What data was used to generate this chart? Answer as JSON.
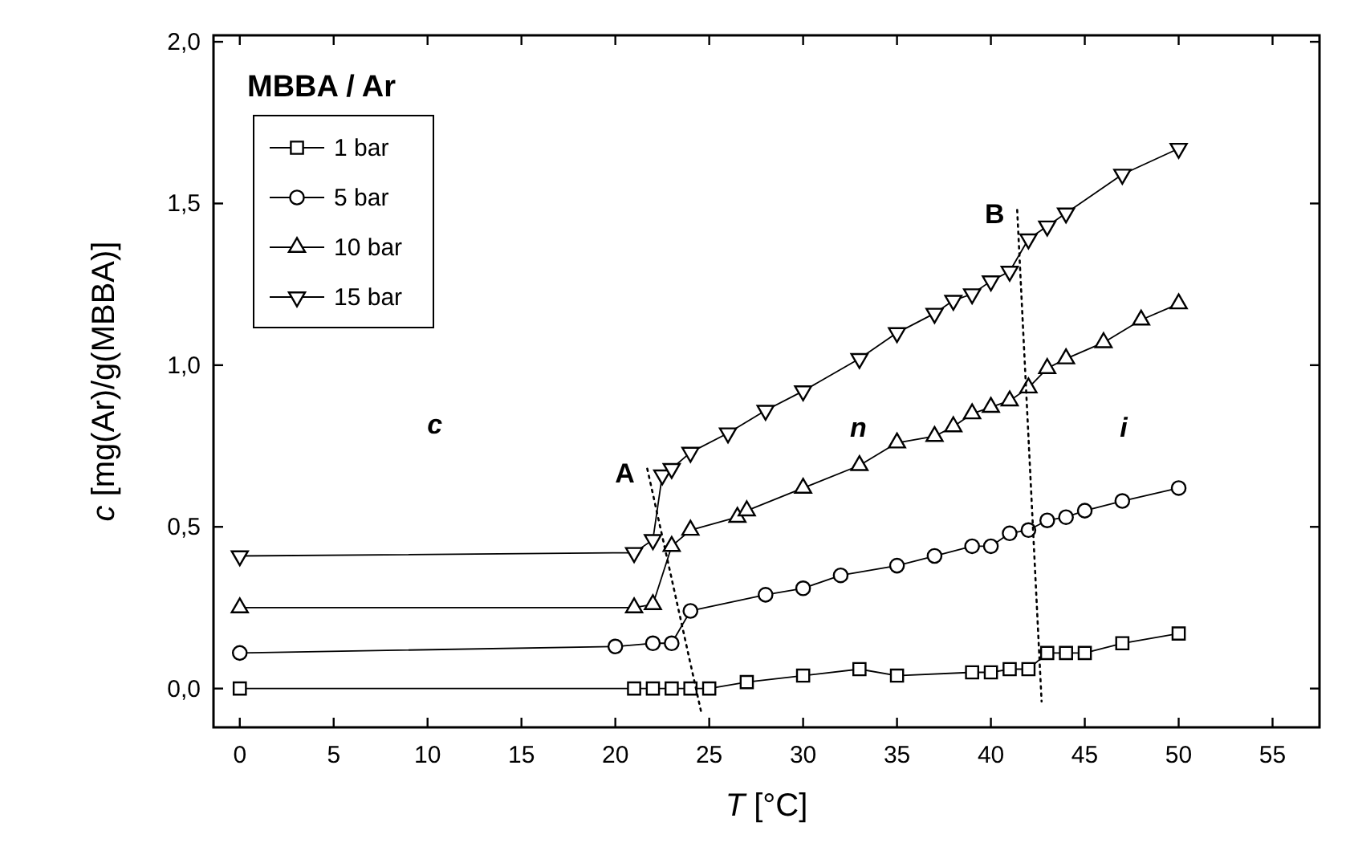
{
  "chart_data": {
    "type": "line",
    "xlabel": "T [°C]",
    "ylabel": "c [mg(Ar)/g(MBBA)]",
    "legend_title": "MBBA / Ar",
    "legend": "top left",
    "grid": false,
    "xlim": [
      -1.4,
      57.5
    ],
    "ylim": [
      -0.12,
      2.02
    ],
    "xticks": [
      0,
      5,
      10,
      15,
      20,
      25,
      30,
      35,
      40,
      45,
      50,
      55
    ],
    "yticks": [
      {
        "value": 0,
        "label": "0,0"
      },
      {
        "value": 0.5,
        "label": "0,5"
      },
      {
        "value": 1,
        "label": "1,0"
      },
      {
        "value": 1.5,
        "label": "1,5"
      },
      {
        "value": 2,
        "label": "2,0"
      }
    ],
    "series": [
      {
        "name": "1 bar",
        "color": "#000000",
        "marker": "square",
        "x": [
          0,
          21,
          22,
          23,
          24,
          25,
          27,
          30,
          33,
          35,
          39,
          40,
          41,
          42,
          43,
          44,
          45,
          47,
          50
        ],
        "values": [
          0,
          0,
          0,
          0,
          0,
          0,
          0.02,
          0.04,
          0.06,
          0.04,
          0.05,
          0.05,
          0.06,
          0.06,
          0.11,
          0.11,
          0.11,
          0.14,
          0.17
        ]
      },
      {
        "name": "5 bar",
        "color": "#000000",
        "marker": "circle",
        "x": [
          0,
          20,
          22,
          23,
          24,
          28,
          30,
          32,
          35,
          37,
          39,
          40,
          41,
          42,
          43,
          44,
          45,
          47,
          50
        ],
        "values": [
          0.11,
          0.13,
          0.14,
          0.14,
          0.24,
          0.29,
          0.31,
          0.35,
          0.38,
          0.41,
          0.44,
          0.44,
          0.48,
          0.49,
          0.52,
          0.53,
          0.55,
          0.58,
          0.62
        ]
      },
      {
        "name": "10 bar",
        "color": "#000000",
        "marker": "triangle",
        "x": [
          0,
          21,
          22,
          23,
          24,
          26.5,
          27,
          30,
          33,
          35,
          37,
          38,
          39,
          40,
          41,
          42,
          43,
          44,
          46,
          48,
          50
        ],
        "values": [
          0.25,
          0.25,
          0.26,
          0.44,
          0.49,
          0.53,
          0.55,
          0.62,
          0.69,
          0.76,
          0.78,
          0.81,
          0.85,
          0.87,
          0.89,
          0.93,
          0.99,
          1.02,
          1.07,
          1.14,
          1.19
        ]
      },
      {
        "name": "15 bar",
        "color": "#000000",
        "marker": "triangle-down",
        "x": [
          0,
          21,
          22,
          22.5,
          23,
          24,
          26,
          28,
          30,
          33,
          35,
          37,
          38,
          39,
          40,
          41,
          42,
          43,
          44,
          47,
          50
        ],
        "values": [
          0.41,
          0.42,
          0.46,
          0.66,
          0.68,
          0.73,
          0.79,
          0.86,
          0.92,
          1.02,
          1.1,
          1.16,
          1.2,
          1.22,
          1.26,
          1.29,
          1.39,
          1.43,
          1.47,
          1.59,
          1.67
        ]
      },
      {
        "color": "#000000",
        "marker": "none",
        "line_style": "dotted",
        "x": [
          21.7,
          24.6
        ],
        "values": [
          0.68,
          -0.08
        ]
      },
      {
        "color": "#000000",
        "marker": "none",
        "line_style": "dotted",
        "x": [
          41.4,
          42.7
        ],
        "values": [
          1.48,
          -0.04
        ]
      }
    ],
    "annotations": [
      {
        "text": "A",
        "x": 21.7,
        "y": 0.68
      },
      {
        "text": "B",
        "x": 41.4,
        "y": 1.48
      },
      "c",
      "n",
      "i"
    ]
  }
}
